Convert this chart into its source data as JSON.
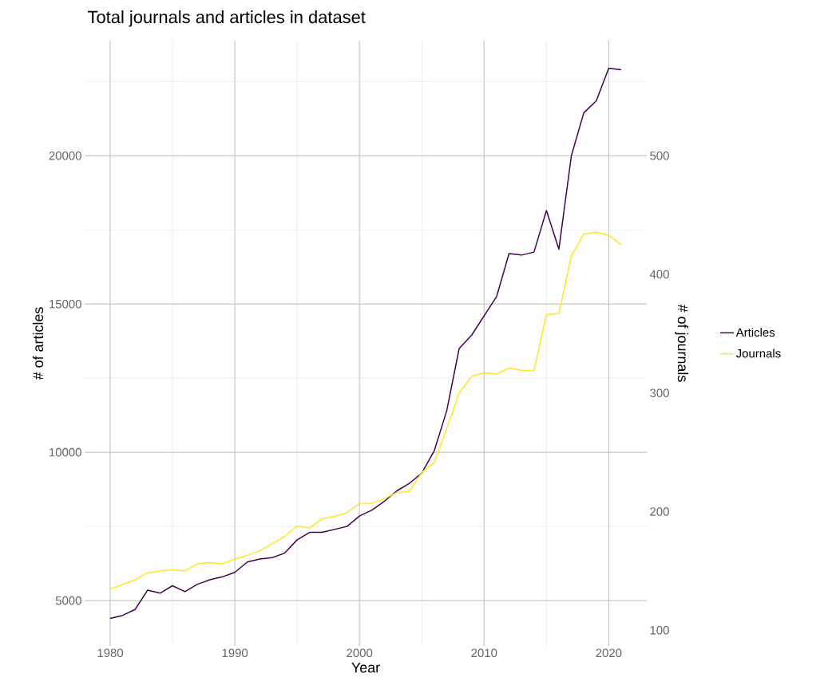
{
  "chart_data": {
    "type": "line",
    "title": "Total journals and articles in dataset",
    "xlabel": "Year",
    "ylabel": "# of articles",
    "y2label": "# of journals",
    "x": [
      1980,
      1981,
      1982,
      1983,
      1984,
      1985,
      1986,
      1987,
      1988,
      1989,
      1990,
      1991,
      1992,
      1993,
      1994,
      1995,
      1996,
      1997,
      1998,
      1999,
      2000,
      2001,
      2002,
      2003,
      2004,
      2005,
      2006,
      2007,
      2008,
      2009,
      2010,
      2011,
      2012,
      2013,
      2014,
      2015,
      2016,
      2017,
      2018,
      2019,
      2020,
      2021
    ],
    "series": [
      {
        "name": "Articles",
        "color": "#440154",
        "values": [
          4400,
          4500,
          4700,
          5350,
          5250,
          5500,
          5300,
          5550,
          5700,
          5800,
          5950,
          6300,
          6400,
          6450,
          6600,
          7050,
          7300,
          7300,
          7400,
          7500,
          7850,
          8050,
          8350,
          8700,
          8950,
          9300,
          10050,
          11400,
          13500,
          13950,
          14600,
          15250,
          16700,
          16650,
          16750,
          18150,
          16850,
          20000,
          21450,
          21850,
          22950,
          22900
        ]
      },
      {
        "name": "Journals",
        "color": "#fde725",
        "axis": "y2",
        "values": [
          135,
          138.5,
          142.5,
          148.5,
          150,
          151,
          150,
          156,
          157,
          156,
          160,
          163,
          167,
          173,
          179,
          188,
          186,
          194,
          196,
          199,
          207,
          207,
          211,
          216,
          217,
          233,
          241.5,
          270,
          300,
          314,
          317,
          316,
          321,
          319,
          319,
          366,
          367,
          415.5,
          434,
          435.5,
          433,
          425
        ]
      }
    ],
    "xlim": [
      1977.95,
      2023.05
    ],
    "xticks": [
      1980,
      1990,
      2000,
      2010,
      2020
    ],
    "ylim": [
      3470,
      23880
    ],
    "yticks": [
      5000,
      10000,
      15000,
      20000
    ],
    "y2lim": [
      86.75,
      597
    ],
    "y2ticks": [
      100,
      200,
      300,
      400,
      500
    ],
    "grid": true,
    "legend": "right",
    "line_style": "solid",
    "marker": "none"
  }
}
